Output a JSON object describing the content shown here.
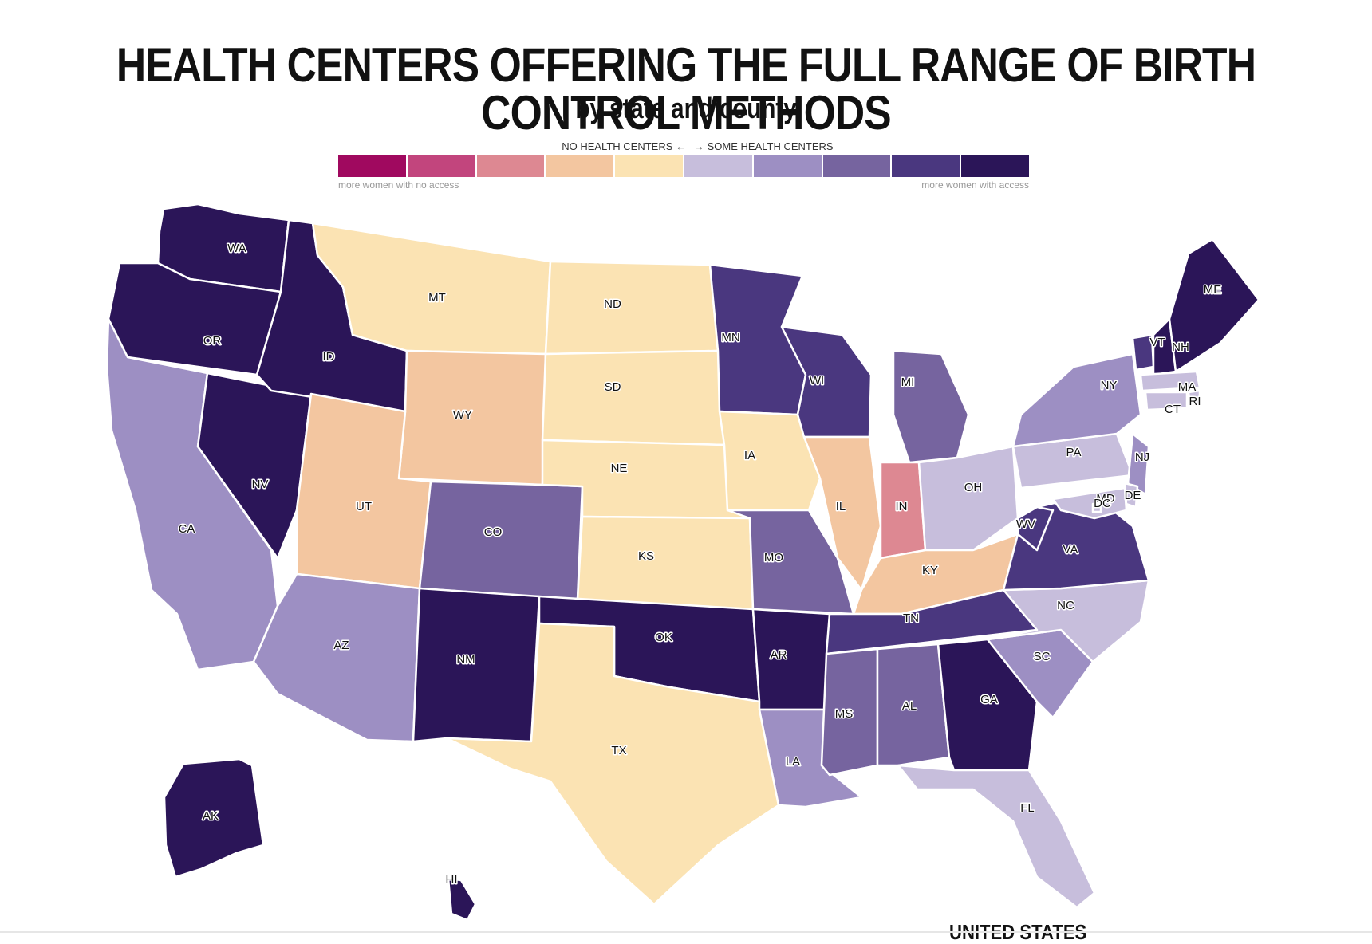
{
  "title": "HEALTH CENTERS OFFERING THE FULL RANGE OF BIRTH CONTROL METHODS",
  "subtitle": "by state and county",
  "legend": {
    "left_label": "NO HEALTH CENTERS ←",
    "right_label": "→ SOME HEALTH CENTERS",
    "left_note": "more women with no access",
    "right_note": "more women with access",
    "colors": [
      "#a0095f",
      "#c2457d",
      "#dd8892",
      "#f3c6a0",
      "#fbe3b3",
      "#c7bedc",
      "#9d8fc3",
      "#76649f",
      "#4a377f",
      "#2b1558"
    ]
  },
  "states": [
    {
      "abbr": "WA",
      "color": "#2b1558"
    },
    {
      "abbr": "OR",
      "color": "#2b1558"
    },
    {
      "abbr": "CA",
      "color": "#9d8fc3"
    },
    {
      "abbr": "NV",
      "color": "#2b1558"
    },
    {
      "abbr": "ID",
      "color": "#2b1558"
    },
    {
      "abbr": "MT",
      "color": "#fbe3b3"
    },
    {
      "abbr": "WY",
      "color": "#f3c6a0"
    },
    {
      "abbr": "UT",
      "color": "#f3c6a0"
    },
    {
      "abbr": "AZ",
      "color": "#9d8fc3"
    },
    {
      "abbr": "CO",
      "color": "#76649f"
    },
    {
      "abbr": "NM",
      "color": "#2b1558"
    },
    {
      "abbr": "ND",
      "color": "#fbe3b3"
    },
    {
      "abbr": "SD",
      "color": "#fbe3b3"
    },
    {
      "abbr": "NE",
      "color": "#fbe3b3"
    },
    {
      "abbr": "KS",
      "color": "#fbe3b3"
    },
    {
      "abbr": "OK",
      "color": "#2b1558"
    },
    {
      "abbr": "TX",
      "color": "#fbe3b3"
    },
    {
      "abbr": "MN",
      "color": "#4a377f"
    },
    {
      "abbr": "IA",
      "color": "#fbe3b3"
    },
    {
      "abbr": "MO",
      "color": "#76649f"
    },
    {
      "abbr": "AR",
      "color": "#2b1558"
    },
    {
      "abbr": "LA",
      "color": "#9d8fc3"
    },
    {
      "abbr": "WI",
      "color": "#4a377f"
    },
    {
      "abbr": "IL",
      "color": "#f3c6a0"
    },
    {
      "abbr": "MI",
      "color": "#76649f"
    },
    {
      "abbr": "IN",
      "color": "#dd8892"
    },
    {
      "abbr": "OH",
      "color": "#c7bedc"
    },
    {
      "abbr": "KY",
      "color": "#f3c6a0"
    },
    {
      "abbr": "TN",
      "color": "#4a377f"
    },
    {
      "abbr": "MS",
      "color": "#76649f"
    },
    {
      "abbr": "AL",
      "color": "#76649f"
    },
    {
      "abbr": "GA",
      "color": "#2b1558"
    },
    {
      "abbr": "FL",
      "color": "#c7bedc"
    },
    {
      "abbr": "SC",
      "color": "#9d8fc3"
    },
    {
      "abbr": "NC",
      "color": "#c7bedc"
    },
    {
      "abbr": "VA",
      "color": "#4a377f"
    },
    {
      "abbr": "WV",
      "color": "#4a377f"
    },
    {
      "abbr": "PA",
      "color": "#c7bedc"
    },
    {
      "abbr": "NY",
      "color": "#9d8fc3"
    },
    {
      "abbr": "VT",
      "color": "#4a377f"
    },
    {
      "abbr": "NH",
      "color": "#2b1558"
    },
    {
      "abbr": "ME",
      "color": "#2b1558"
    },
    {
      "abbr": "MA",
      "color": "#c7bedc"
    },
    {
      "abbr": "RI",
      "color": "#c7bedc"
    },
    {
      "abbr": "CT",
      "color": "#c7bedc"
    },
    {
      "abbr": "NJ",
      "color": "#9d8fc3"
    },
    {
      "abbr": "DE",
      "color": "#c7bedc"
    },
    {
      "abbr": "MD",
      "color": "#c7bedc"
    },
    {
      "abbr": "DC",
      "color": "#c7bedc"
    },
    {
      "abbr": "AK",
      "color": "#2b1558"
    },
    {
      "abbr": "HI",
      "color": "#2b1558"
    }
  ],
  "footer": {
    "label": "UNITED STATES"
  }
}
